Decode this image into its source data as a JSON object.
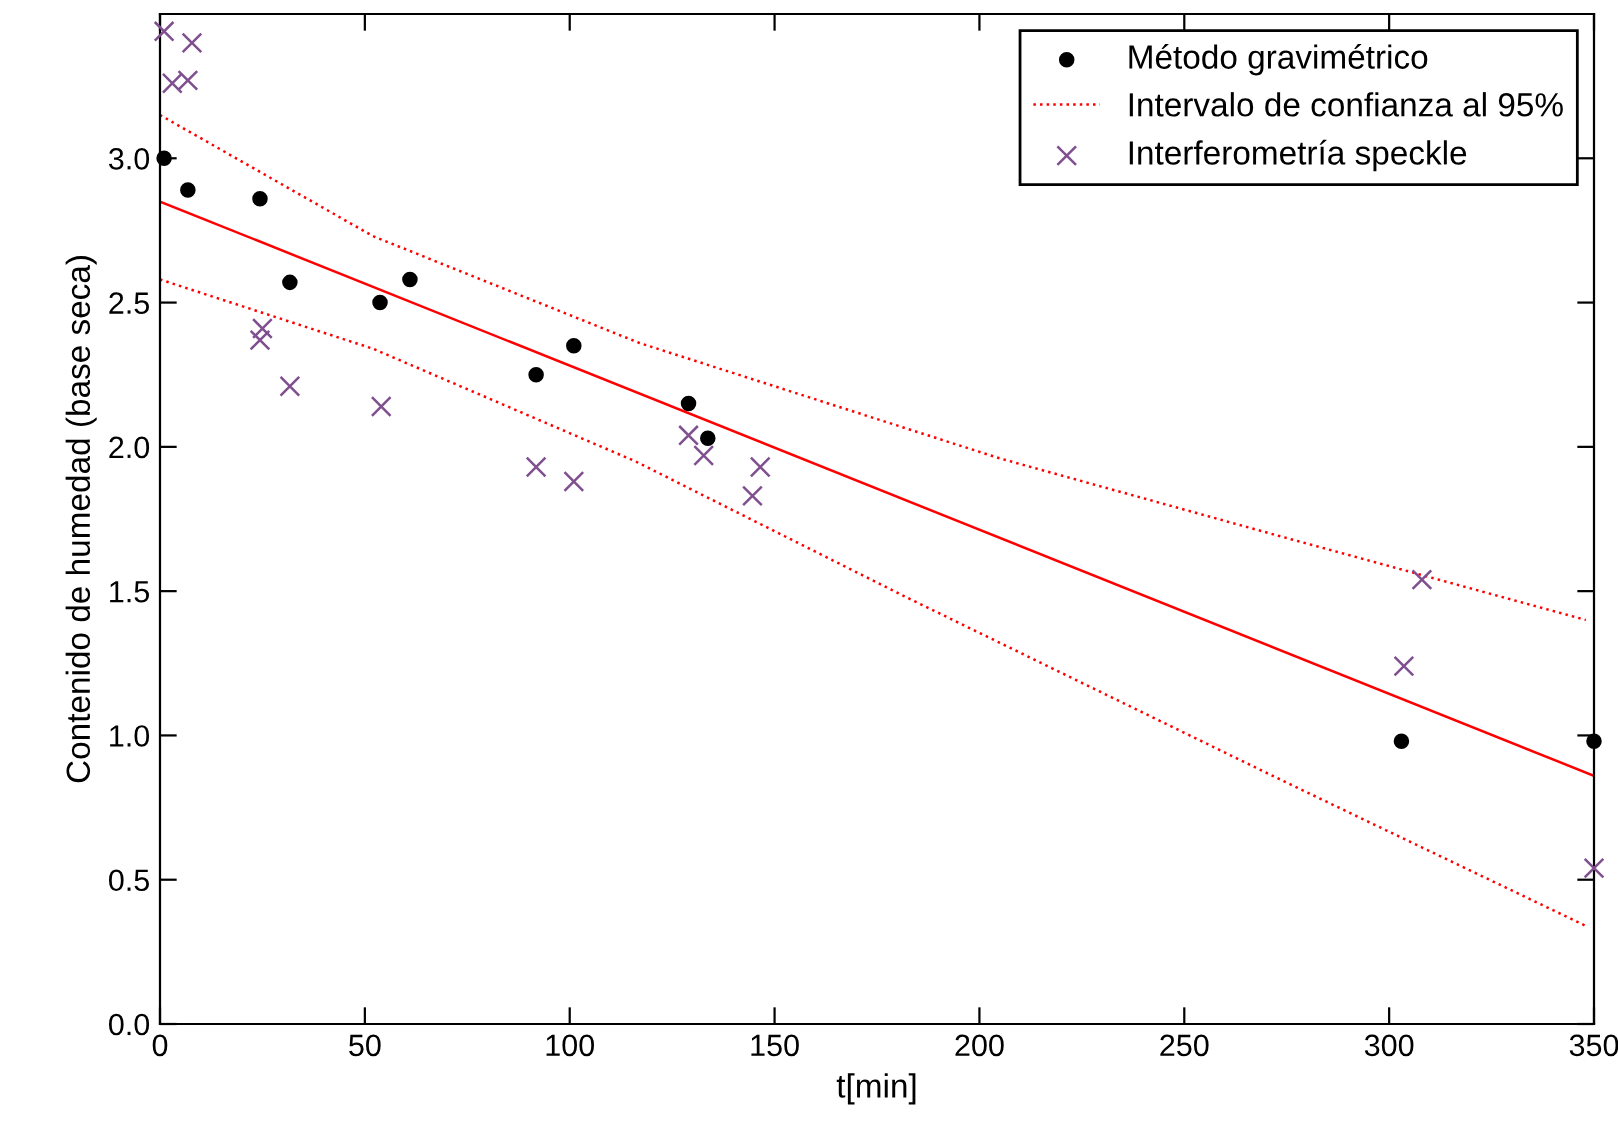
{
  "chart_data": {
    "type": "scatter",
    "xlabel": "t[min]",
    "ylabel": "Contenido de humedad (base seca)",
    "xlim": [
      0,
      350
    ],
    "ylim": [
      0,
      3.5
    ],
    "xticks": [
      0,
      50,
      100,
      150,
      200,
      250,
      300,
      350
    ],
    "yticks": [
      {
        "value": 0,
        "label": "0.0"
      },
      {
        "value": 0.5,
        "label": "0.5"
      },
      {
        "value": 1,
        "label": "1.0"
      },
      {
        "value": 1.5,
        "label": "1.5"
      },
      {
        "value": 2,
        "label": "2.0"
      },
      {
        "value": 2.5,
        "label": "2.5"
      },
      {
        "value": 3,
        "label": "3.0"
      }
    ],
    "grid": false,
    "legend": "top right",
    "series": [
      {
        "name": "Método gravimétrico",
        "marker": "circle",
        "color": "#000000",
        "x": [
          1,
          6.8,
          24.4,
          31.7,
          53.7,
          61,
          91.8,
          101,
          129,
          133.7,
          303,
          350
        ],
        "values": [
          3.0,
          2.89,
          2.86,
          2.57,
          2.5,
          2.58,
          2.25,
          2.35,
          2.15,
          2.03,
          0.98,
          0.98
        ]
      },
      {
        "type": "line",
        "line_style": "solid",
        "color": "#ff0000",
        "x": [
          0,
          350
        ],
        "values": [
          2.85,
          0.86
        ]
      },
      {
        "name": "Intervalo de confianza al 95%",
        "type": "line",
        "line_style": "dotted",
        "color": "#ff0000",
        "x": [
          0,
          52,
          117,
          205,
          276,
          348
        ],
        "values": [
          3.15,
          2.73,
          2.36,
          1.96,
          1.68,
          1.4
        ]
      },
      {
        "type": "line",
        "line_style": "dotted",
        "color": "#ff0000",
        "x": [
          0,
          52,
          116,
          182,
          273,
          348
        ],
        "values": [
          2.58,
          2.34,
          1.95,
          1.48,
          0.85,
          0.34
        ]
      },
      {
        "name": "Interferometría speckle",
        "marker": "cross",
        "color": "#7f4f8f",
        "x": [
          1,
          3,
          7.8,
          6.8,
          25,
          24.4,
          31.7,
          54,
          91.8,
          101,
          129,
          132.7,
          144.6,
          146.5,
          303.6,
          308,
          350
        ],
        "values": [
          3.44,
          3.26,
          3.4,
          3.27,
          2.41,
          2.37,
          2.21,
          2.14,
          1.93,
          1.88,
          2.04,
          1.97,
          1.83,
          1.93,
          1.24,
          1.54,
          0.54
        ]
      }
    ]
  }
}
